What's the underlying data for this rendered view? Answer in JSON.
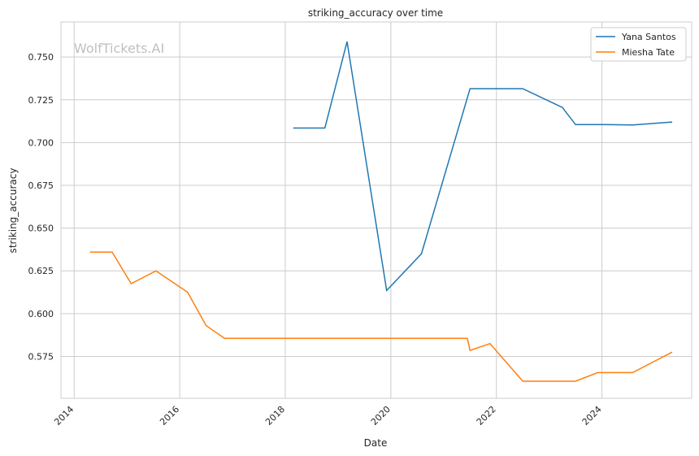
{
  "chart_data": {
    "type": "line",
    "title": "striking_accuracy over time",
    "xlabel": "Date",
    "ylabel": "striking_accuracy",
    "watermark": "WolfTickets.AI",
    "xlim": [
      2013.75,
      2025.7
    ],
    "ylim": [
      0.5505,
      0.7705
    ],
    "x_ticks": [
      2014,
      2016,
      2018,
      2020,
      2022,
      2024
    ],
    "y_ticks": [
      "0.575",
      "0.600",
      "0.625",
      "0.650",
      "0.675",
      "0.700",
      "0.725",
      "0.750"
    ],
    "grid": true,
    "legend_position": "top-right",
    "series": [
      {
        "name": "Yana Santos",
        "color": "#1f77b4",
        "x": [
          2018.15,
          2018.75,
          2019.17,
          2019.92,
          2020.58,
          2021.5,
          2022.5,
          2023.25,
          2023.5,
          2024.0,
          2024.58,
          2025.33
        ],
        "y": [
          0.7085,
          0.7085,
          0.759,
          0.6135,
          0.635,
          0.7315,
          0.7315,
          0.7205,
          0.7105,
          0.7105,
          0.7103,
          0.712
        ]
      },
      {
        "name": "Miesha Tate",
        "color": "#ff7f0e",
        "x": [
          2014.3,
          2014.72,
          2015.08,
          2015.55,
          2016.15,
          2016.5,
          2016.85,
          2021.45,
          2021.5,
          2021.88,
          2022.5,
          2023.5,
          2023.92,
          2024.58,
          2025.33
        ],
        "y": [
          0.636,
          0.636,
          0.6175,
          0.625,
          0.6125,
          0.593,
          0.5855,
          0.5855,
          0.5785,
          0.5825,
          0.5605,
          0.5605,
          0.5655,
          0.5655,
          0.5775
        ]
      }
    ]
  }
}
